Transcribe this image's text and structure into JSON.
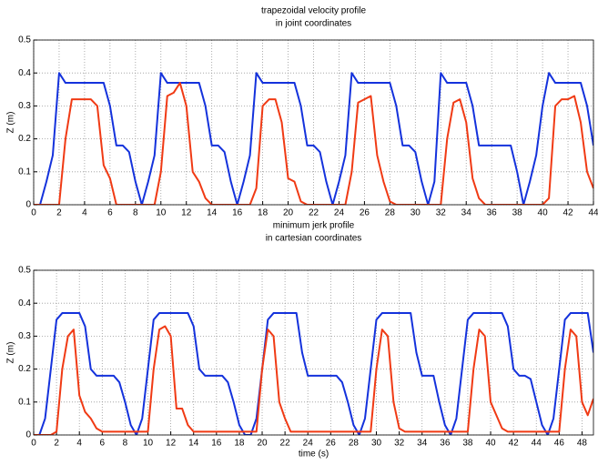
{
  "chart_data": [
    {
      "type": "line",
      "title": "trapezoidal velocity profile",
      "subtitle": "in joint coordinates",
      "ylabel": "Z (m)",
      "xlim": [
        0,
        44
      ],
      "ylim": [
        0,
        0.5
      ],
      "grid": true,
      "xticks": [
        0,
        2,
        4,
        6,
        8,
        10,
        12,
        14,
        16,
        18,
        20,
        22,
        24,
        26,
        28,
        30,
        32,
        34,
        36,
        38,
        40,
        42,
        44
      ],
      "yticks": [
        0,
        0.1,
        0.2,
        0.3,
        0.4,
        0.5
      ],
      "x": [
        0,
        0.5,
        1,
        1.5,
        2,
        2.5,
        3,
        3.5,
        4,
        4.5,
        5,
        5.5,
        6,
        6.5,
        7,
        7.5,
        8,
        8.5,
        9,
        9.5,
        10,
        10.5,
        11,
        11.5,
        12,
        12.5,
        13,
        13.5,
        14,
        14.5,
        15,
        15.5,
        16,
        16.5,
        17,
        17.5,
        18,
        18.5,
        19,
        19.5,
        20,
        20.5,
        21,
        21.5,
        22,
        22.5,
        23,
        23.5,
        24,
        24.5,
        25,
        25.5,
        26,
        26.5,
        27,
        27.5,
        28,
        28.5,
        29,
        29.5,
        30,
        30.5,
        31,
        31.5,
        32,
        32.5,
        33,
        33.5,
        34,
        34.5,
        35,
        35.5,
        36,
        36.5,
        37,
        37.5,
        38,
        38.5,
        39,
        39.5,
        40,
        40.5,
        41,
        41.5,
        42,
        42.5,
        43,
        43.5,
        44
      ],
      "series": [
        {
          "color": "#1432dc",
          "values": [
            0,
            0,
            0.07,
            0.15,
            0.4,
            0.37,
            0.37,
            0.37,
            0.37,
            0.37,
            0.37,
            0.37,
            0.3,
            0.18,
            0.18,
            0.16,
            0.07,
            0,
            0.07,
            0.15,
            0.4,
            0.37,
            0.37,
            0.37,
            0.37,
            0.37,
            0.37,
            0.3,
            0.18,
            0.18,
            0.16,
            0.07,
            0,
            0.07,
            0.15,
            0.4,
            0.37,
            0.37,
            0.37,
            0.37,
            0.37,
            0.37,
            0.3,
            0.18,
            0.18,
            0.16,
            0.07,
            0,
            0.07,
            0.15,
            0.4,
            0.37,
            0.37,
            0.37,
            0.37,
            0.37,
            0.37,
            0.3,
            0.18,
            0.18,
            0.16,
            0.07,
            0,
            0.07,
            0.4,
            0.37,
            0.37,
            0.37,
            0.37,
            0.3,
            0.18,
            0.18,
            0.18,
            0.18,
            0.18,
            0.18,
            0.1,
            0,
            0.07,
            0.15,
            0.3,
            0.4,
            0.37,
            0.37,
            0.37,
            0.37,
            0.37,
            0.3,
            0.18
          ]
        },
        {
          "color": "#f03a14",
          "values": [
            0,
            0,
            0,
            0,
            0,
            0.2,
            0.32,
            0.32,
            0.32,
            0.32,
            0.3,
            0.12,
            0.08,
            0,
            0,
            0,
            0,
            0,
            0,
            0,
            0.1,
            0.33,
            0.34,
            0.37,
            0.3,
            0.1,
            0.07,
            0.02,
            0,
            0,
            0,
            0,
            0,
            0,
            0,
            0.05,
            0.3,
            0.32,
            0.32,
            0.25,
            0.08,
            0.07,
            0.01,
            0,
            0,
            0,
            0,
            0,
            0,
            0,
            0.1,
            0.31,
            0.32,
            0.33,
            0.15,
            0.07,
            0.01,
            0,
            0,
            0,
            0,
            0,
            0,
            0,
            0,
            0.2,
            0.31,
            0.32,
            0.25,
            0.08,
            0.02,
            0,
            0,
            0,
            0,
            0,
            0,
            0,
            0,
            0,
            0,
            0.02,
            0.3,
            0.32,
            0.32,
            0.33,
            0.25,
            0.1,
            0.05
          ]
        }
      ]
    },
    {
      "type": "line",
      "title": "minimum jerk profile",
      "subtitle": "in cartesian coordinates",
      "ylabel": "Z (m)",
      "xlabel": "time (s)",
      "xlim": [
        0,
        49
      ],
      "ylim": [
        0,
        0.5
      ],
      "grid": true,
      "xticks": [
        0,
        2,
        4,
        6,
        8,
        10,
        12,
        14,
        16,
        18,
        20,
        22,
        24,
        26,
        28,
        30,
        32,
        34,
        36,
        38,
        40,
        42,
        44,
        46,
        48
      ],
      "yticks": [
        0,
        0.1,
        0.2,
        0.3,
        0.4,
        0.5
      ],
      "x": [
        0,
        0.5,
        1,
        1.5,
        2,
        2.5,
        3,
        3.5,
        4,
        4.5,
        5,
        5.5,
        6,
        6.5,
        7,
        7.5,
        8,
        8.5,
        9,
        9.5,
        10,
        10.5,
        11,
        11.5,
        12,
        12.5,
        13,
        13.5,
        14,
        14.5,
        15,
        15.5,
        16,
        16.5,
        17,
        17.5,
        18,
        18.5,
        19,
        19.5,
        20,
        20.5,
        21,
        21.5,
        22,
        22.5,
        23,
        23.5,
        24,
        24.5,
        25,
        25.5,
        26,
        26.5,
        27,
        27.5,
        28,
        28.5,
        29,
        29.5,
        30,
        30.5,
        31,
        31.5,
        32,
        32.5,
        33,
        33.5,
        34,
        34.5,
        35,
        35.5,
        36,
        36.5,
        37,
        37.5,
        38,
        38.5,
        39,
        39.5,
        40,
        40.5,
        41,
        41.5,
        42,
        42.5,
        43,
        43.5,
        44,
        44.5,
        45,
        45.5,
        46,
        46.5,
        47,
        47.5,
        48,
        48.5,
        49
      ],
      "series": [
        {
          "color": "#1432dc",
          "values": [
            0,
            0,
            0.05,
            0.2,
            0.35,
            0.37,
            0.37,
            0.37,
            0.37,
            0.33,
            0.2,
            0.18,
            0.18,
            0.18,
            0.18,
            0.16,
            0.1,
            0.03,
            0,
            0.05,
            0.2,
            0.35,
            0.37,
            0.37,
            0.37,
            0.37,
            0.37,
            0.37,
            0.33,
            0.2,
            0.18,
            0.18,
            0.18,
            0.18,
            0.16,
            0.1,
            0.03,
            0,
            0,
            0.05,
            0.2,
            0.35,
            0.37,
            0.37,
            0.37,
            0.37,
            0.37,
            0.25,
            0.18,
            0.18,
            0.18,
            0.18,
            0.18,
            0.18,
            0.16,
            0.1,
            0.03,
            0,
            0.05,
            0.2,
            0.35,
            0.37,
            0.37,
            0.37,
            0.37,
            0.37,
            0.37,
            0.25,
            0.18,
            0.18,
            0.18,
            0.1,
            0.03,
            0,
            0.05,
            0.2,
            0.35,
            0.37,
            0.37,
            0.37,
            0.37,
            0.37,
            0.37,
            0.33,
            0.2,
            0.18,
            0.18,
            0.17,
            0.1,
            0.03,
            0,
            0.05,
            0.2,
            0.35,
            0.37,
            0.37,
            0.37,
            0.37,
            0.25
          ]
        },
        {
          "color": "#f03a14",
          "values": [
            0,
            0,
            0,
            0,
            0.01,
            0.2,
            0.3,
            0.32,
            0.12,
            0.07,
            0.05,
            0.02,
            0.01,
            0.01,
            0.01,
            0.01,
            0.01,
            0.01,
            0.01,
            0.01,
            0.01,
            0.2,
            0.32,
            0.33,
            0.3,
            0.08,
            0.08,
            0.03,
            0.01,
            0.01,
            0.01,
            0.01,
            0.01,
            0.01,
            0.01,
            0.01,
            0.01,
            0.01,
            0.01,
            0.01,
            0.2,
            0.32,
            0.3,
            0.1,
            0.05,
            0.01,
            0.01,
            0.01,
            0.01,
            0.01,
            0.01,
            0.01,
            0.01,
            0.01,
            0.01,
            0.01,
            0.01,
            0.01,
            0.01,
            0.01,
            0.2,
            0.32,
            0.3,
            0.1,
            0.02,
            0.01,
            0.01,
            0.01,
            0.01,
            0.01,
            0.01,
            0.01,
            0.01,
            0.01,
            0.01,
            0.01,
            0.01,
            0.2,
            0.32,
            0.3,
            0.1,
            0.06,
            0.02,
            0.01,
            0.01,
            0.01,
            0.01,
            0.01,
            0.01,
            0.01,
            0.01,
            0.01,
            0.01,
            0.2,
            0.32,
            0.3,
            0.1,
            0.06,
            0.11
          ]
        }
      ]
    }
  ]
}
